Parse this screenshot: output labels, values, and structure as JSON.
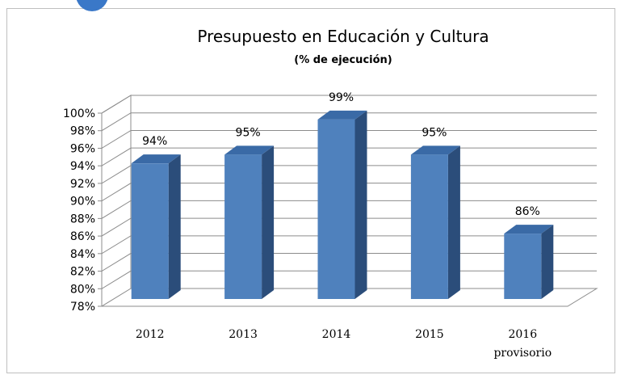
{
  "chart_data": {
    "type": "bar",
    "title": "Presupuesto en Educación y Cultura",
    "subtitle": "(% de ejecución)",
    "xlabel": "",
    "ylabel": "",
    "categories": [
      "2012",
      "2013",
      "2014",
      "2015",
      "2016"
    ],
    "category_sublabels": [
      "",
      "",
      "",
      "",
      "provisorio"
    ],
    "values": [
      94,
      95,
      99,
      95,
      86
    ],
    "data_labels": [
      "94%",
      "95%",
      "99%",
      "95%",
      "86%"
    ],
    "ylim": [
      78,
      100
    ],
    "yticks": [
      "78%",
      "80%",
      "82%",
      "84%",
      "86%",
      "88%",
      "90%",
      "92%",
      "94%",
      "96%",
      "98%",
      "100%"
    ],
    "grid": true,
    "style": "3d-column",
    "bar_color": "#4f81bd",
    "bar_side_color": "#2b4d7a",
    "bar_top_color": "#3a6aa6"
  }
}
